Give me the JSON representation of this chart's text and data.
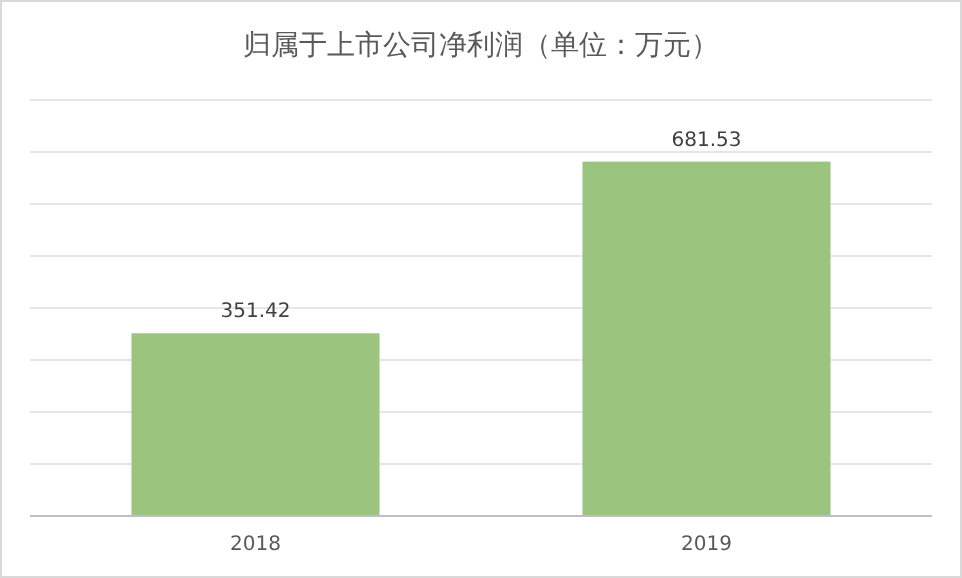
{
  "chart_data": {
    "type": "bar",
    "title": "归属于上市公司净利润（单位：万元）",
    "categories": [
      "2018",
      "2019"
    ],
    "values": [
      351.42,
      681.53
    ],
    "color": "#9bc47e",
    "ylim": [
      0,
      800
    ],
    "yticks": [
      {
        "value": 0,
        "label": null
      },
      {
        "value": 100,
        "label": null
      },
      {
        "value": 200,
        "label": null
      },
      {
        "value": 300,
        "label": null
      },
      {
        "value": 400,
        "label": null
      },
      {
        "value": 500,
        "label": null
      },
      {
        "value": 600,
        "label": null
      },
      {
        "value": 700,
        "label": null
      },
      {
        "value": 800,
        "label": null
      }
    ],
    "grid": "y",
    "data_labels": true
  }
}
